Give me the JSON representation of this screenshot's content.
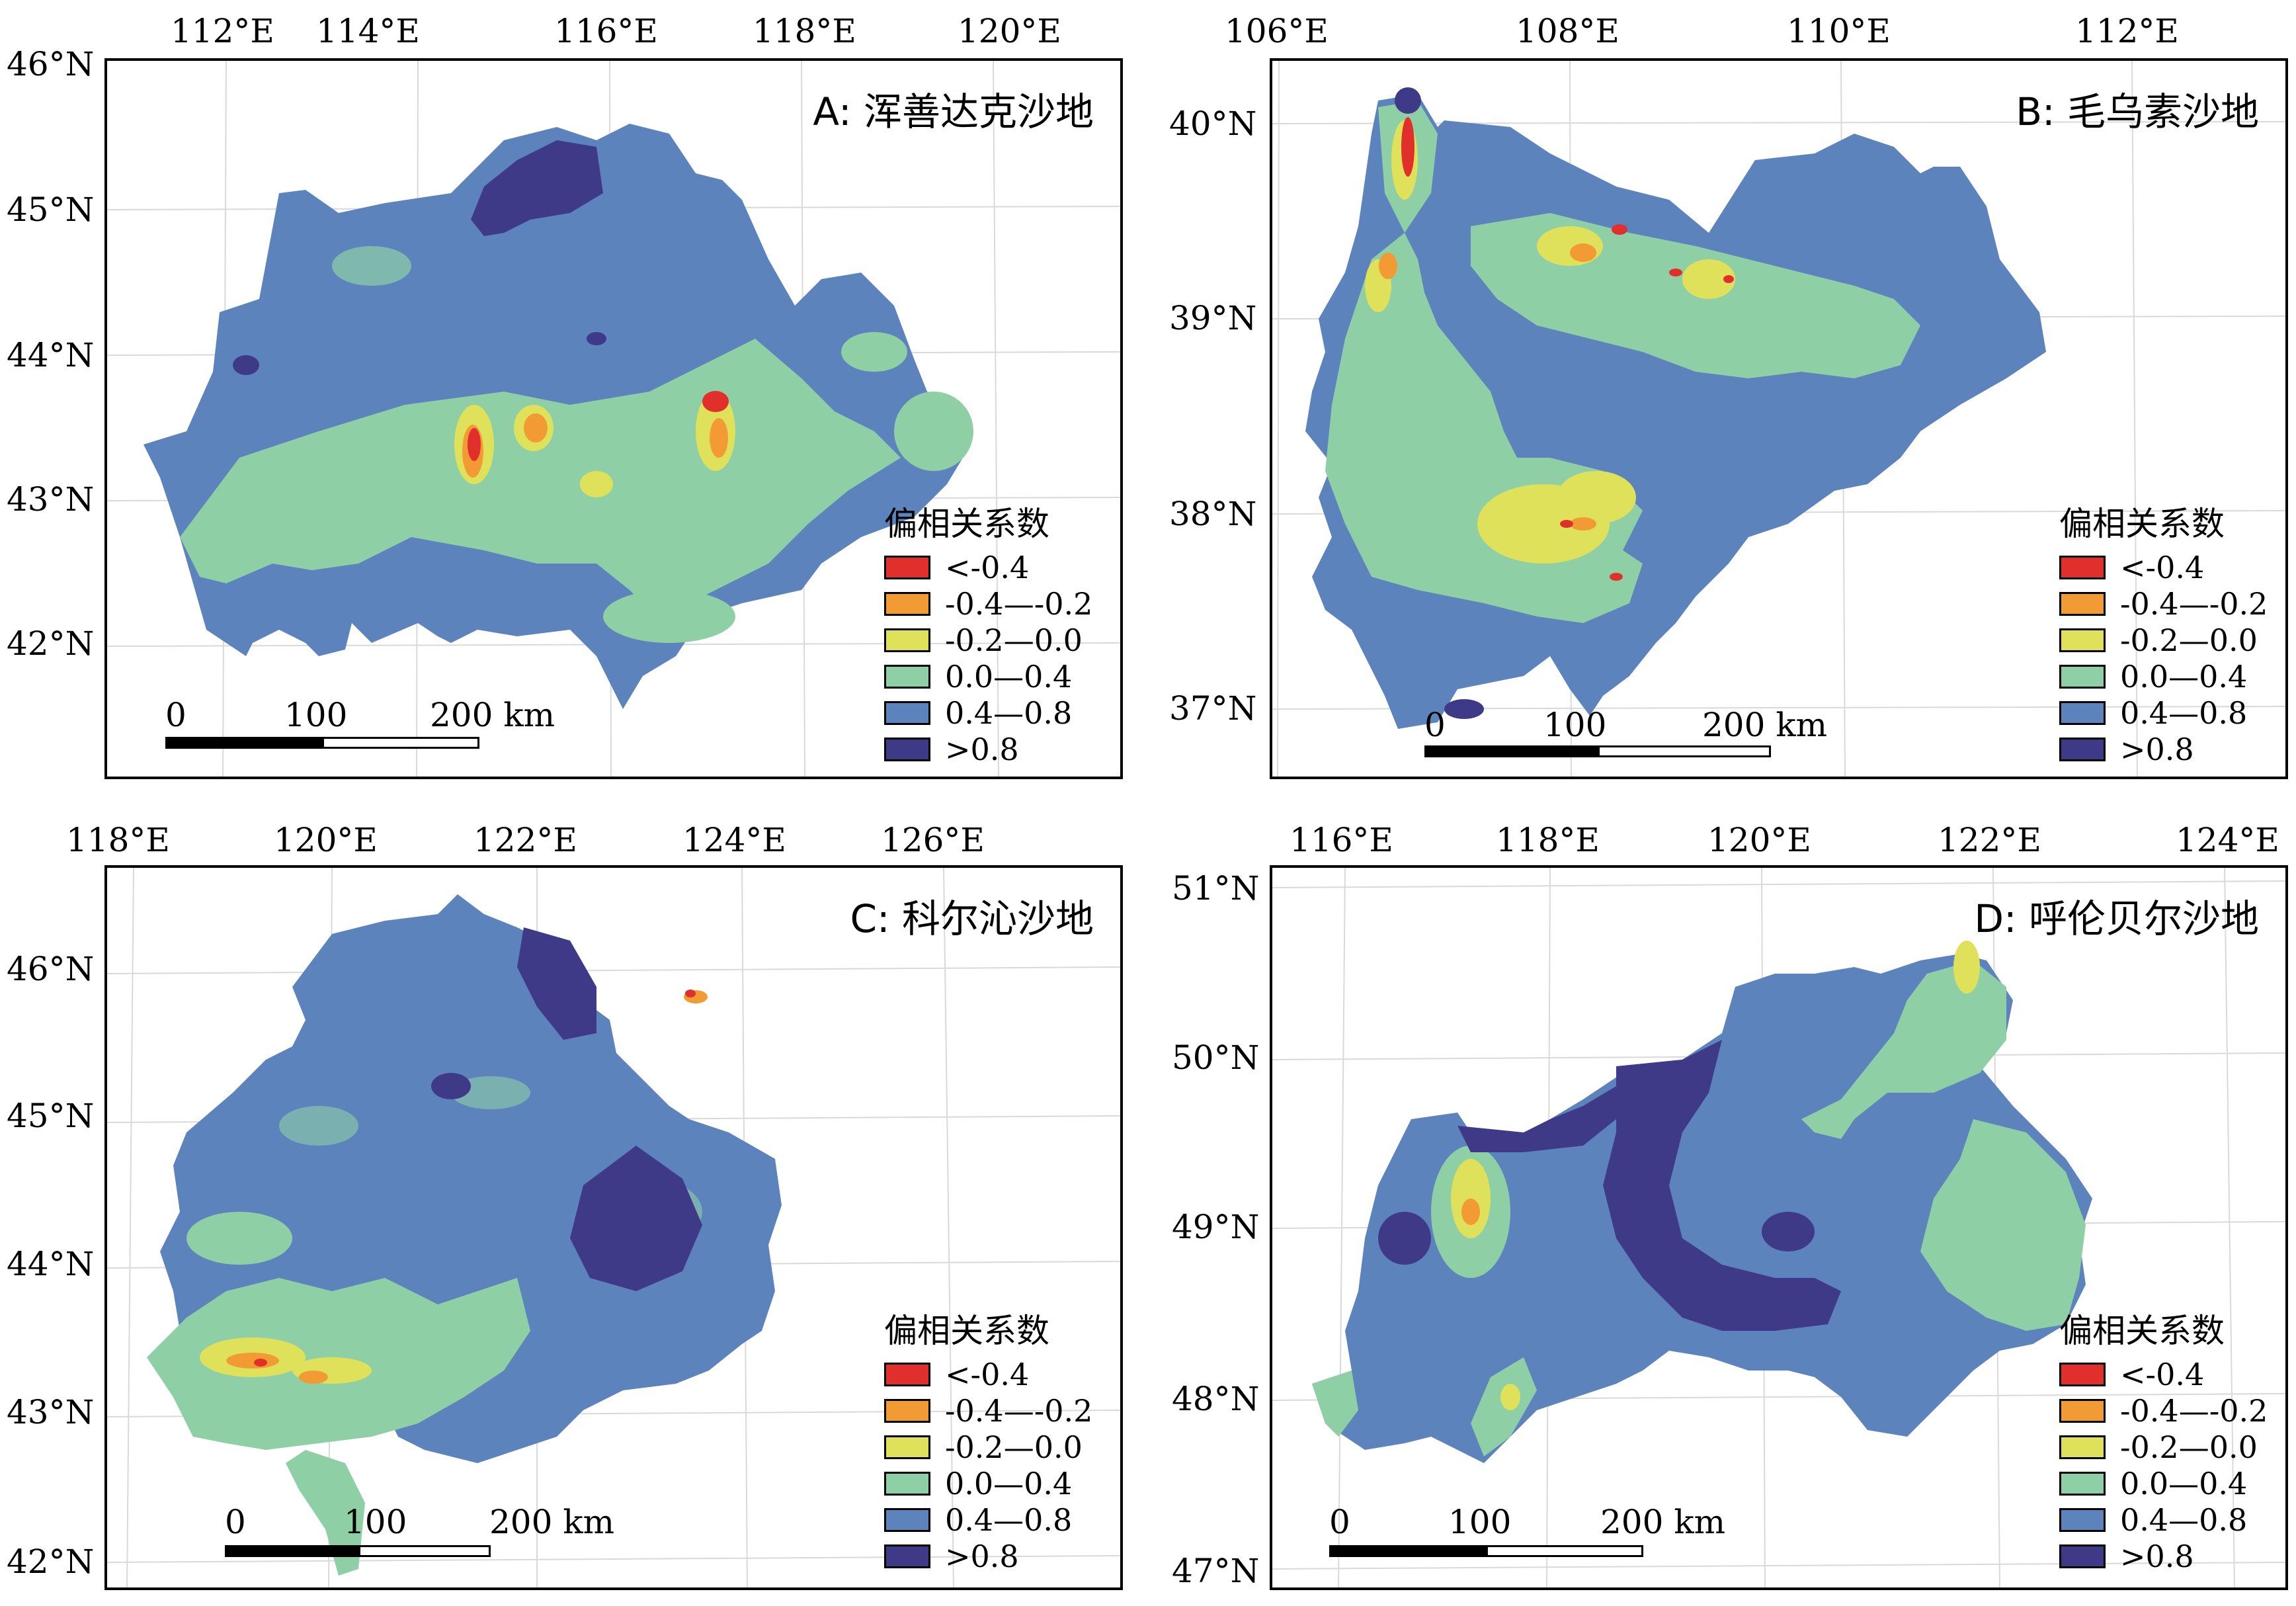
{
  "colors": {
    "lt_neg04": "#e1302b",
    "neg04_neg02": "#f29b35",
    "neg02_00": "#dfe15a",
    "00_04": "#8fcfa6",
    "04_08": "#5d83bd",
    "gt_08": "#3f3a88"
  },
  "legend": {
    "title": "偏相关系数",
    "items": [
      {
        "label": "<-0.4",
        "color": "#e1302b"
      },
      {
        "label": "-0.4—-0.2",
        "color": "#f29b35"
      },
      {
        "label": "-0.2—0.0",
        "color": "#dfe15a"
      },
      {
        "label": "0.0—0.4",
        "color": "#8fcfa6"
      },
      {
        "label": "0.4—0.8",
        "color": "#5d83bd"
      },
      {
        "label": ">0.8",
        "color": "#3f3a88"
      }
    ]
  },
  "scalebar": {
    "labels": [
      "0",
      "100",
      "200 km"
    ]
  },
  "panels": {
    "A": {
      "title": "A: 浑善达克沙地",
      "lon_ticks": [
        "112°E",
        "114°E",
        "116°E",
        "118°E",
        "120°E"
      ],
      "lat_ticks": [
        "46°N",
        "45°N",
        "44°N",
        "43°N",
        "42°N"
      ]
    },
    "B": {
      "title": "B: 毛乌素沙地",
      "lon_ticks": [
        "106°E",
        "108°E",
        "110°E",
        "112°E"
      ],
      "lat_ticks": [
        "40°N",
        "39°N",
        "38°N",
        "37°N"
      ]
    },
    "C": {
      "title": "C: 科尔沁沙地",
      "lon_ticks": [
        "118°E",
        "120°E",
        "122°E",
        "124°E",
        "126°E"
      ],
      "lat_ticks": [
        "46°N",
        "45°N",
        "44°N",
        "43°N",
        "42°N"
      ]
    },
    "D": {
      "title": "D: 呼伦贝尔沙地",
      "lon_ticks": [
        "116°E",
        "118°E",
        "120°E",
        "122°E",
        "124°E"
      ],
      "lat_ticks": [
        "51°N",
        "50°N",
        "49°N",
        "48°N",
        "47°N"
      ]
    }
  }
}
